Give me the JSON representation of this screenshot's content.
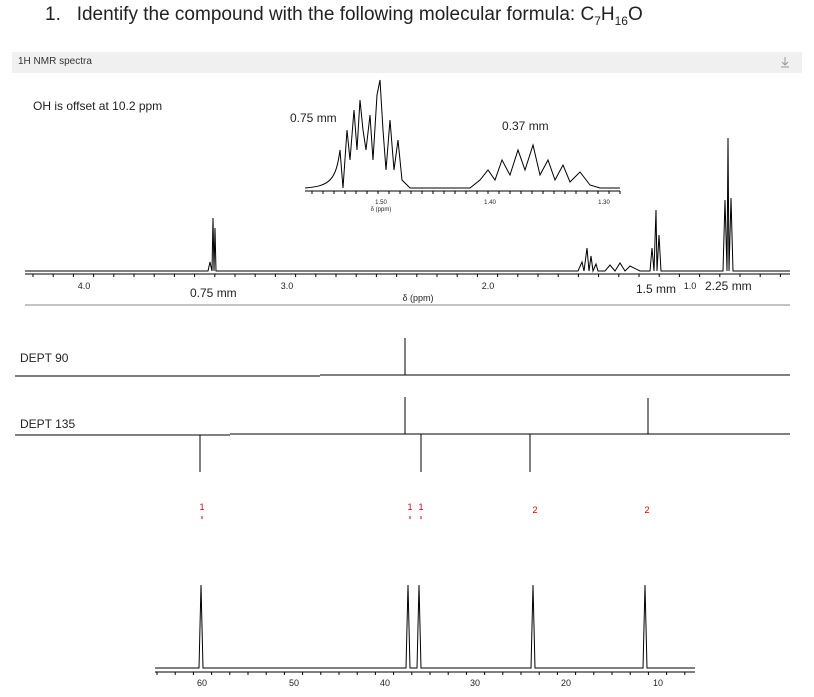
{
  "question": {
    "number": "1.",
    "text": "Identify the compound with the following molecular formula:",
    "formula": [
      "C",
      "7",
      "H",
      "16",
      "O"
    ]
  },
  "panel": {
    "title": "1H NMR spectra"
  },
  "nmr": {
    "note": "OH is offset at 10.2 ppm",
    "inset": {
      "labels": [
        "0.75 mm",
        "0.37 mm"
      ],
      "ticks": [
        "1.50",
        "1.40",
        "1.30"
      ],
      "axis_label": "δ (ppm)"
    },
    "ticks": [
      "4.0",
      "3.0",
      "2.0",
      "1.0"
    ],
    "axis_label": "δ (ppm)",
    "integrals": [
      "0.75 mm",
      "1.5 mm",
      "2.25 mm"
    ]
  },
  "dept": {
    "dept90": "DEPT 90",
    "dept135": "DEPT 135"
  },
  "carbon": {
    "peak_labels": [
      "1",
      "1",
      "1",
      "2",
      "2"
    ],
    "ticks": [
      "60",
      "50",
      "40",
      "30",
      "20",
      "10"
    ]
  }
}
